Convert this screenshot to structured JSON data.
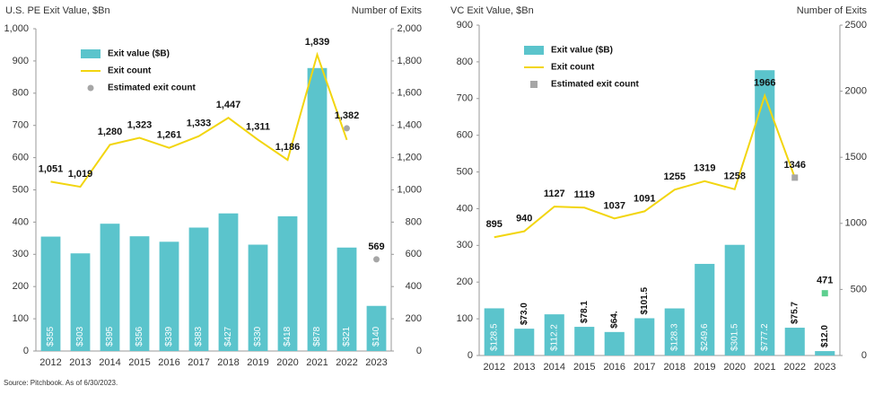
{
  "chart_data": [
    {
      "type": "bar",
      "title": "U.S. PE Exit Value, $Bn",
      "y2_label": "Number of Exits",
      "categories": [
        "2012",
        "2013",
        "2014",
        "2015",
        "2016",
        "2017",
        "2018",
        "2019",
        "2020",
        "2021",
        "2022",
        "2023"
      ],
      "ylim": [
        0,
        1000
      ],
      "yticks": [
        0,
        100,
        200,
        300,
        400,
        500,
        600,
        700,
        800,
        900,
        {
          "value": 1000,
          "label": "1,000"
        }
      ],
      "y2lim": [
        0,
        2000
      ],
      "y2ticks": [
        0,
        200,
        400,
        600,
        800,
        {
          "value": 1000,
          "label": "1,000"
        },
        {
          "value": 1200,
          "label": "1,200"
        },
        {
          "value": 1400,
          "label": "1,400"
        },
        {
          "value": 1600,
          "label": "1,600"
        },
        {
          "value": 1800,
          "label": "1,800"
        },
        {
          "value": 2000,
          "label": "2,000"
        }
      ],
      "series": [
        {
          "name": "Exit value ($B)",
          "type": "bar",
          "color": "#5bc4cc",
          "values": [
            355,
            303,
            395,
            356,
            339,
            383,
            427,
            330,
            418,
            878,
            321,
            140
          ],
          "value_labels": [
            "$355",
            "$303",
            "$395",
            "$356",
            "$339",
            "$383",
            "$427",
            "$330",
            "$418",
            "$878",
            "$321",
            "$140"
          ]
        },
        {
          "name": "Exit count",
          "type": "line",
          "axis": "y2",
          "color": "#f2d50f",
          "values": [
            1051,
            1019,
            1280,
            1323,
            1261,
            1333,
            1447,
            1311,
            1186,
            1839,
            1310,
            null
          ],
          "value_labels": [
            "1,051",
            "1,019",
            "1,280",
            "1,323",
            "1,261",
            "1,333",
            "1,447",
            "1,311",
            "1,186",
            "1,839",
            null,
            null
          ]
        },
        {
          "name": "Estimated exit count",
          "type": "scatter",
          "axis": "y2",
          "color": "#a6a6a6",
          "marker": "circle",
          "values": [
            null,
            null,
            null,
            null,
            null,
            null,
            null,
            null,
            null,
            null,
            1382,
            569
          ],
          "value_labels": [
            null,
            null,
            null,
            null,
            null,
            null,
            null,
            null,
            null,
            null,
            "1,382",
            "569"
          ]
        }
      ]
    },
    {
      "type": "bar",
      "title": "VC Exit Value, $Bn",
      "y2_label": "Number of Exits",
      "categories": [
        "2012",
        "2013",
        "2014",
        "2015",
        "2016",
        "2017",
        "2018",
        "2019",
        "2020",
        "2021",
        "2022",
        "2023"
      ],
      "ylim": [
        0,
        900
      ],
      "yticks": [
        0,
        100,
        200,
        300,
        400,
        500,
        600,
        700,
        800,
        900
      ],
      "y2lim": [
        0,
        2500
      ],
      "y2ticks": [
        0,
        500,
        1000,
        1500,
        2000,
        2500
      ],
      "series": [
        {
          "name": "Exit value ($B)",
          "type": "bar",
          "color": "#5bc4cc",
          "values": [
            128.5,
            73.0,
            112.2,
            78.1,
            64,
            101.5,
            128.3,
            249.6,
            301.5,
            777.2,
            75.7,
            12.0
          ],
          "value_labels": [
            "$128.5",
            "$73.0",
            "$112.2",
            "$78.1",
            "$64.",
            "$101.5",
            "$128.3",
            "$249.6",
            "$301.5",
            "$777.2",
            "$75.7",
            "$12.0"
          ]
        },
        {
          "name": "Exit count",
          "type": "line",
          "axis": "y2",
          "color": "#f2d50f",
          "values": [
            895,
            940,
            1127,
            1119,
            1037,
            1091,
            1255,
            1319,
            1258,
            1966,
            1346,
            null
          ]
        },
        {
          "name": "Estimated exit count",
          "type": "scatter",
          "axis": "y2",
          "color": "#a6a6a6",
          "marker": "square",
          "point_colors": [
            null,
            null,
            null,
            null,
            null,
            null,
            null,
            null,
            null,
            null,
            "#a6a6a6",
            "#5ecf8f"
          ],
          "values": [
            null,
            null,
            null,
            null,
            null,
            null,
            null,
            null,
            null,
            null,
            1346,
            471
          ],
          "value_labels": [
            null,
            null,
            null,
            null,
            null,
            null,
            null,
            null,
            null,
            null,
            null,
            "471"
          ]
        }
      ]
    }
  ],
  "source": "Source: Pitchbook. As of 6/30/2023."
}
